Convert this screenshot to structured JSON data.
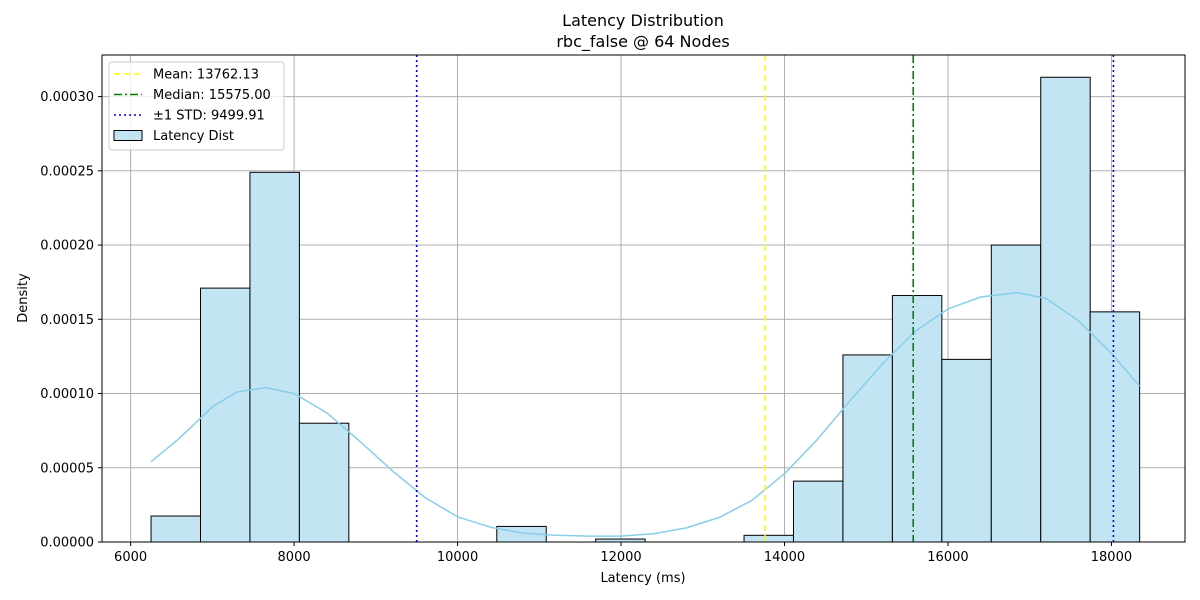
{
  "chart_data": {
    "type": "histogram",
    "title": "Latency Distribution",
    "subtitle": "rbc_false @ 64 Nodes",
    "xlabel": "Latency (ms)",
    "ylabel": "Density",
    "xlim": [
      5650,
      18900
    ],
    "ylim": [
      0,
      0.000328
    ],
    "grid": true,
    "x_ticks": [
      6000,
      8000,
      10000,
      12000,
      14000,
      16000,
      18000
    ],
    "x_tick_labels": [
      "6000",
      "8000",
      "10000",
      "12000",
      "14000",
      "16000",
      "18000"
    ],
    "y_ticks": [
      0,
      5e-05,
      0.0001,
      0.00015,
      0.0002,
      0.00025,
      0.0003
    ],
    "y_tick_labels": [
      "0.00000",
      "0.00005",
      "0.00010",
      "0.00015",
      "0.00020",
      "0.00025",
      "0.00030"
    ],
    "bins": [
      {
        "start": 6250,
        "end": 6855,
        "density": 1.75e-05
      },
      {
        "start": 6855,
        "end": 7460,
        "density": 0.000171
      },
      {
        "start": 7460,
        "end": 8065,
        "density": 0.000249
      },
      {
        "start": 8065,
        "end": 8670,
        "density": 8e-05
      },
      {
        "start": 10480,
        "end": 11085,
        "density": 1.05e-05
      },
      {
        "start": 11690,
        "end": 12295,
        "density": 2e-06
      },
      {
        "start": 13505,
        "end": 14110,
        "density": 4.5e-06
      },
      {
        "start": 14110,
        "end": 14715,
        "density": 4.1e-05
      },
      {
        "start": 14715,
        "end": 15320,
        "density": 0.000126
      },
      {
        "start": 15320,
        "end": 15925,
        "density": 0.000166
      },
      {
        "start": 15925,
        "end": 16530,
        "density": 0.000123
      },
      {
        "start": 16530,
        "end": 17135,
        "density": 0.0002
      },
      {
        "start": 17135,
        "end": 17740,
        "density": 0.000313
      },
      {
        "start": 17740,
        "end": 18345,
        "density": 0.000155
      }
    ],
    "kde": {
      "x": [
        6250,
        6600,
        7000,
        7300,
        7650,
        8000,
        8400,
        8800,
        9200,
        9600,
        10000,
        10400,
        10800,
        11200,
        11600,
        12000,
        12400,
        12800,
        13200,
        13600,
        14000,
        14400,
        14800,
        15200,
        15600,
        16000,
        16400,
        16850,
        17200,
        17600,
        18000,
        18345
      ],
      "y": [
        5.4e-05,
        7e-05,
        9.1e-05,
        0.000101,
        0.000104,
        0.0001,
        8.7e-05,
        6.8e-05,
        4.8e-05,
        3e-05,
        1.7e-05,
        1e-05,
        6e-06,
        4.5e-06,
        4e-06,
        4e-06,
        5.5e-06,
        9.5e-06,
        1.65e-05,
        2.8e-05,
        4.6e-05,
        6.9e-05,
        9.5e-05,
        0.00012,
        0.000142,
        0.000157,
        0.000165,
        0.000168,
        0.000164,
        0.000149,
        0.000127,
        0.000105
      ]
    },
    "vlines": [
      {
        "x": 13762.13,
        "color": "#ffff00",
        "style": "dashed"
      },
      {
        "x": 15575.0,
        "color": "#008000",
        "style": "dashdot"
      },
      {
        "x": 9499.91,
        "color": "#0000ff",
        "style": "dotted"
      },
      {
        "x": 18024.35,
        "color": "#0000ff",
        "style": "dotted"
      }
    ],
    "colors": {
      "bar_fill": "#c3e5f3",
      "bar_edge": "#000000",
      "kde": "#87ceeb"
    },
    "legend": {
      "position": "upper left",
      "entries": [
        {
          "label": "Mean: 13762.13",
          "kind": "line",
          "color": "#ffff00",
          "style": "dashed"
        },
        {
          "label": "Median: 15575.00",
          "kind": "line",
          "color": "#008000",
          "style": "dashdot"
        },
        {
          "label": "±1 STD: 9499.91",
          "kind": "line",
          "color": "#0000ff",
          "style": "dotted"
        },
        {
          "label": "Latency Dist",
          "kind": "patch",
          "color": "#c3e5f3"
        }
      ]
    }
  }
}
